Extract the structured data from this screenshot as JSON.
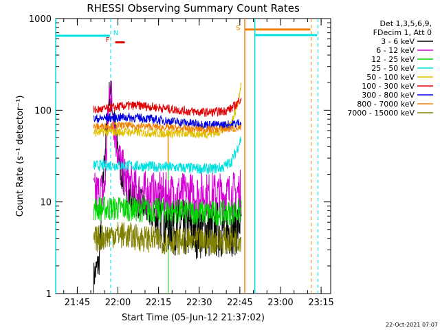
{
  "chart_data": {
    "type": "line",
    "title": "RHESSI Observing Summary Count Rates",
    "xlabel": "Start Time (05-Jun-12 21:37:02)",
    "ylabel": "Count Rate (s⁻¹ detector⁻¹)",
    "y_scale": "log",
    "ylim": [
      1,
      1000
    ],
    "xlim_minutes": [
      0,
      101.5
    ],
    "x_tick_labels": [
      "21:45",
      "22:00",
      "22:15",
      "22:30",
      "22:45",
      "23:00",
      "23:15"
    ],
    "x_tick_minutes": [
      7.97,
      22.97,
      37.97,
      52.97,
      67.97,
      82.97,
      97.97
    ],
    "y_tick_labels": [
      "1",
      "10",
      "100",
      "1000"
    ],
    "y_tick_values": [
      1,
      10,
      100,
      1000
    ],
    "legend_header": [
      "Det 1,3,5,6,9,",
      "FDecim 1, Att 0"
    ],
    "series": [
      {
        "name": "3 - 6 keV",
        "color": "#000000",
        "x": [
          14,
          16,
          18,
          20,
          22,
          24,
          26,
          28,
          32,
          36,
          40,
          44,
          48,
          52,
          56,
          60,
          64,
          67,
          68.5
        ],
        "y": [
          1.5,
          2.2,
          30,
          180,
          60,
          22,
          13,
          11,
          9,
          7,
          6,
          5.5,
          5,
          5,
          5,
          5,
          5.2,
          5.5,
          7
        ]
      },
      {
        "name": "6 - 12 keV",
        "color": "#d400d4",
        "x": [
          14,
          16,
          18,
          20,
          22,
          24,
          26,
          30,
          36,
          42,
          48,
          54,
          60,
          64,
          67,
          68.5
        ],
        "y": [
          12,
          12.5,
          13,
          200,
          55,
          25,
          17,
          13,
          12,
          12,
          12,
          12,
          12,
          12,
          12.5,
          13
        ]
      },
      {
        "name": "12 - 25 keV",
        "color": "#00d400",
        "x": [
          14,
          18,
          22,
          26,
          32,
          40,
          48,
          56,
          64,
          68.5
        ],
        "y": [
          8.5,
          8.5,
          8.5,
          8.5,
          8.2,
          8,
          7.8,
          7.6,
          7.6,
          8
        ]
      },
      {
        "name": "25 - 50 keV",
        "color": "#00e0e0",
        "x": [
          14,
          18,
          22,
          26,
          32,
          40,
          48,
          54,
          58,
          62,
          65,
          67,
          68.5
        ],
        "y": [
          25,
          25,
          25,
          25,
          24.5,
          24,
          23.5,
          23,
          23,
          24,
          28,
          38,
          50
        ]
      },
      {
        "name": "50 - 100 keV",
        "color": "#e0c000",
        "x": [
          14,
          18,
          22,
          26,
          32,
          40,
          48,
          54,
          58,
          62,
          65,
          67,
          68.5
        ],
        "y": [
          57,
          58,
          58,
          58,
          57,
          56,
          56,
          55,
          56,
          60,
          75,
          110,
          200
        ]
      },
      {
        "name": "100 - 300 keV",
        "color": "#e00000",
        "x": [
          14,
          18,
          22,
          26,
          32,
          40,
          48,
          54,
          58,
          62,
          65,
          67,
          68.5
        ],
        "y": [
          100,
          103,
          108,
          112,
          112,
          105,
          98,
          95,
          95,
          98,
          105,
          118,
          140
        ]
      },
      {
        "name": "300 - 800 keV",
        "color": "#0000e0",
        "x": [
          14,
          18,
          22,
          26,
          32,
          40,
          48,
          54,
          58,
          62,
          65,
          67,
          68.5
        ],
        "y": [
          80,
          82,
          83,
          84,
          82,
          77,
          73,
          70,
          69,
          69,
          70,
          72,
          74
        ]
      },
      {
        "name": "800 - 7000 keV",
        "color": "#f08000",
        "x": [
          14,
          18,
          22,
          26,
          32,
          40,
          48,
          54,
          58,
          62,
          65,
          67,
          68.5
        ],
        "y": [
          66,
          67,
          68,
          68,
          67,
          65,
          63,
          62,
          62,
          62,
          63,
          63,
          64
        ]
      },
      {
        "name": "7000 - 15000 keV",
        "color": "#808000",
        "x": [
          14,
          18,
          22,
          26,
          32,
          40,
          48,
          56,
          64,
          68.5
        ],
        "y": [
          3.8,
          4.2,
          4.5,
          4.3,
          4,
          3.8,
          3.7,
          3.7,
          3.8,
          4
        ]
      }
    ],
    "markers": [
      {
        "label": "N",
        "color": "#00e0e0"
      },
      {
        "label": "F",
        "color": "#e00000"
      },
      {
        "label": "S",
        "color": "#f08000"
      }
    ],
    "grid": false,
    "legend_placement": "right"
  },
  "timestamp": "22-Oct-2021 07:07"
}
